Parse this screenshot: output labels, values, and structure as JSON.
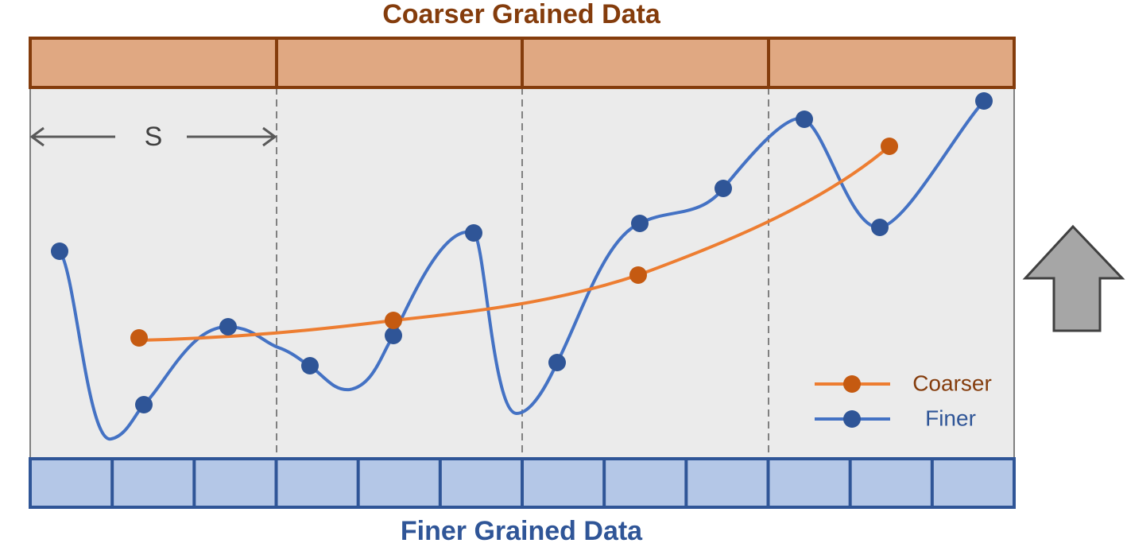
{
  "header": {
    "title": "Coarser Grained Data"
  },
  "footer": {
    "title": "Finer Grained Data"
  },
  "span": {
    "label": "S"
  },
  "legend": {
    "items": [
      {
        "label": "Coarser"
      },
      {
        "label": "Finer"
      }
    ]
  }
}
